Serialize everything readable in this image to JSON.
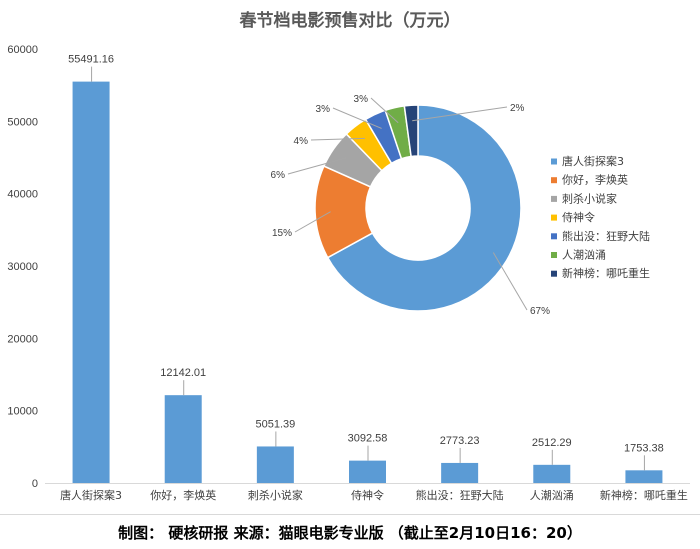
{
  "title": "春节档电影预售对比（万元）",
  "footer": "制图： 硬核研报 来源：猫眼电影专业版 （截止至2月10日16：20）",
  "chart_data": [
    {
      "type": "bar",
      "categories": [
        "唐人街探案3",
        "你好，李焕英",
        "刺杀小说家",
        "侍神令",
        "熊出没：狂野大陆",
        "人潮汹涌",
        "新神榜：哪吒重生"
      ],
      "values": [
        55491.16,
        12142.01,
        5051.39,
        3092.58,
        2773.23,
        2512.29,
        1753.38
      ],
      "value_labels": [
        "55491.16",
        "12142.01",
        "5051.39",
        "3092.58",
        "2773.23",
        "2512.29",
        "1753.38"
      ],
      "ylim": [
        0,
        60000
      ],
      "yticks": [
        "0",
        "10000",
        "20000",
        "30000",
        "40000",
        "50000",
        "60000"
      ],
      "color": "#5b9bd5"
    },
    {
      "type": "pie",
      "donut": true,
      "legend_position": "right",
      "labels": [
        "唐人街探案3",
        "你好，李焕英",
        "刺杀小说家",
        "侍神令",
        "熊出没：狂野大陆",
        "人潮汹涌",
        "新神榜：哪吒重生"
      ],
      "values": [
        55491.16,
        12142.01,
        5051.39,
        3092.58,
        2773.23,
        2512.29,
        1753.38
      ],
      "percent_labels": [
        "67%",
        "15%",
        "6%",
        "4%",
        "3%",
        "3%",
        "2%"
      ],
      "colors": [
        "#5b9bd5",
        "#ed7d31",
        "#a5a5a5",
        "#ffc000",
        "#4472c4",
        "#70ad47",
        "#264478"
      ]
    }
  ]
}
